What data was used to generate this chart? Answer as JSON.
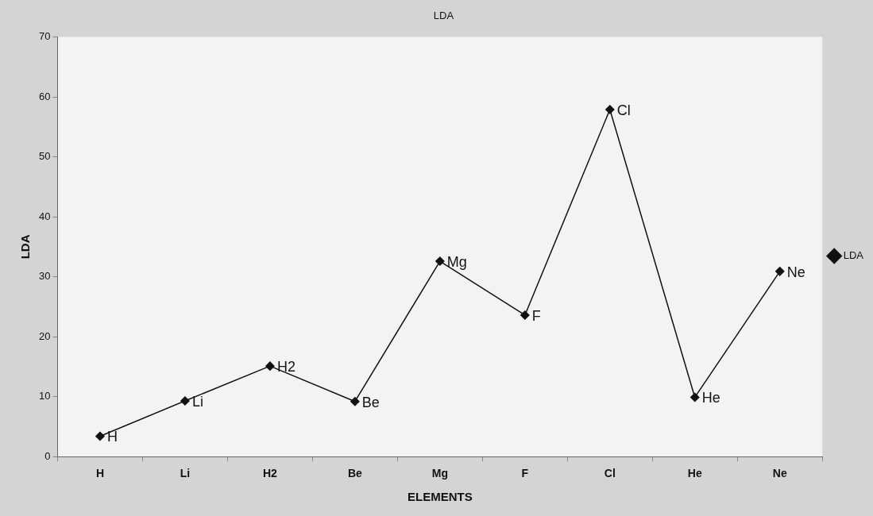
{
  "chart_data": {
    "type": "line",
    "title": "LDA",
    "xlabel": "ELEMENTS",
    "ylabel": "LDA",
    "categories": [
      "H",
      "Li",
      "H2",
      "Be",
      "Mg",
      "F",
      "Cl",
      "He",
      "Ne"
    ],
    "series": [
      {
        "name": "LDA",
        "color": "#111111",
        "values": [
          3.4,
          9.3,
          15.1,
          9.2,
          32.6,
          23.6,
          57.9,
          9.9,
          30.9
        ]
      }
    ],
    "ylim": [
      0,
      70
    ],
    "yticks": [
      0,
      10,
      20,
      30,
      40,
      50,
      60,
      70
    ],
    "grid": false,
    "legend": "right",
    "marker": "diamond",
    "line_style": "solid",
    "annotations": [
      {
        "text": "H",
        "x": "H",
        "y": 3.4
      },
      {
        "text": "Li",
        "x": "Li",
        "y": 9.3
      },
      {
        "text": "H2",
        "x": "H2",
        "y": 15.1
      },
      {
        "text": "Be",
        "x": "Be",
        "y": 9.2
      },
      {
        "text": "Mg",
        "x": "Mg",
        "y": 32.6
      },
      {
        "text": "F",
        "x": "F",
        "y": 23.6
      },
      {
        "text": "Cl",
        "x": "Cl",
        "y": 57.9
      },
      {
        "text": "He",
        "x": "He",
        "y": 9.9
      },
      {
        "text": "Ne",
        "x": "Ne",
        "y": 30.9
      }
    ]
  }
}
